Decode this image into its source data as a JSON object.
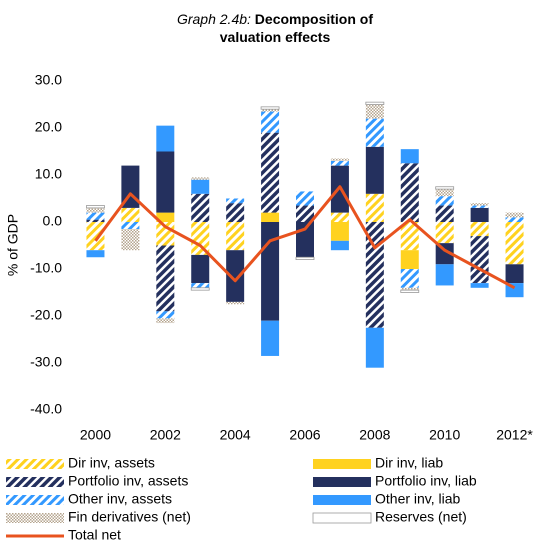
{
  "chart_data": {
    "type": "bar",
    "stacked": true,
    "title_prefix": "Graph 2.4b:",
    "title": "Decomposition of valuation effects",
    "y_label": "% of GDP",
    "categories": [
      "2000",
      null,
      "2002",
      null,
      "2004",
      null,
      "2006",
      null,
      "2008",
      null,
      "2010",
      null,
      "2012*"
    ],
    "ylim": [
      -40,
      30
    ],
    "yticks": [
      {
        "value": -40,
        "label": "-40.0"
      },
      {
        "value": -30,
        "label": "-30.0"
      },
      {
        "value": -20,
        "label": "-20.0"
      },
      {
        "value": -10,
        "label": "-10.0"
      },
      {
        "value": 0,
        "label": "0.0"
      },
      {
        "value": 10,
        "label": "10.0"
      },
      {
        "value": 20,
        "label": "20.0"
      },
      {
        "value": 30,
        "label": "30.0"
      }
    ],
    "grid": false,
    "series": [
      {
        "name": "Dir inv, assets",
        "color": "#ffd21f",
        "pattern": "stripes",
        "values": [
          -6,
          3,
          -5,
          -7,
          -6,
          0,
          0,
          2,
          6,
          -6,
          -4.5,
          -3,
          -9
        ]
      },
      {
        "name": "Dir inv, liab",
        "color": "#ffd21f",
        "pattern": "solid",
        "values": [
          0,
          0,
          2,
          0,
          0,
          2,
          0,
          -4,
          0,
          -4,
          0,
          0,
          0
        ]
      },
      {
        "name": "Portfolio inv, assets",
        "color": "#24305e",
        "pattern": "stripes",
        "values": [
          0.5,
          0,
          -14,
          6,
          4,
          17,
          3.5,
          0,
          -22.5,
          12.5,
          3.5,
          -10,
          0
        ]
      },
      {
        "name": "Portfolio inv, liab",
        "color": "#24305e",
        "pattern": "solid",
        "values": [
          0,
          9,
          13,
          -6,
          -11,
          -21,
          -7.5,
          10,
          10,
          0,
          -4.5,
          3,
          -4
        ]
      },
      {
        "name": "Other inv, assets",
        "color": "#3399ff",
        "pattern": "stripes",
        "values": [
          1.5,
          -1.5,
          -1.5,
          -1,
          1,
          4.5,
          3,
          1,
          6,
          -4,
          2,
          0.5,
          1
        ]
      },
      {
        "name": "Other inv, liab",
        "color": "#3399ff",
        "pattern": "solid",
        "values": [
          -1.5,
          0,
          5.5,
          3,
          0,
          -7.5,
          0,
          -2,
          -8.5,
          3,
          -4.5,
          -1,
          -3
        ]
      },
      {
        "name": "Fin derivatives (net)",
        "color": "#b5a58f",
        "pattern": "dots",
        "values": [
          1,
          -4.5,
          -1,
          0.5,
          -0.5,
          0.5,
          0,
          0.5,
          3,
          -0.5,
          1.5,
          0.5,
          1
        ]
      },
      {
        "name": "Reserves (net)",
        "color": "#ffffff",
        "pattern": "outline",
        "values": [
          0.5,
          0,
          0,
          -0.5,
          0,
          0.5,
          -0.5,
          0,
          0.5,
          -0.5,
          0.5,
          0,
          0
        ]
      },
      {
        "name": "Total net",
        "color": "#e8531f",
        "pattern": "line",
        "values": [
          -4,
          6,
          -1,
          -5,
          -12.5,
          -4,
          -1.5,
          7.5,
          -5.5,
          0.5,
          -6,
          -10,
          -14
        ]
      }
    ]
  }
}
